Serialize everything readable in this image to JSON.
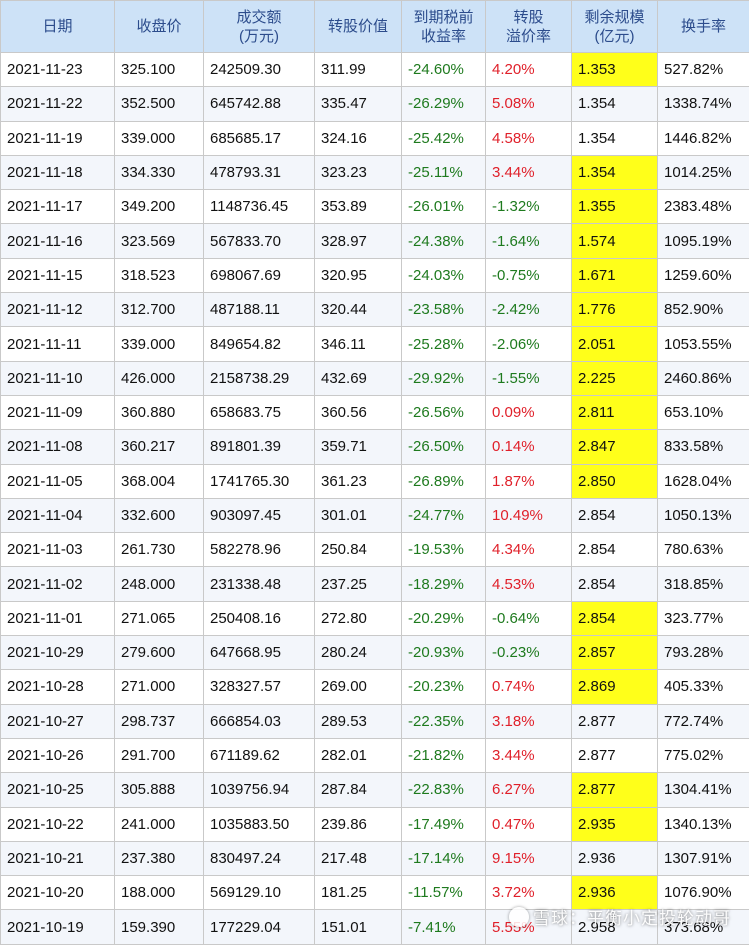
{
  "table": {
    "headers": [
      {
        "line1": "日期",
        "line2": ""
      },
      {
        "line1": "收盘价",
        "line2": ""
      },
      {
        "line1": "成交额",
        "line2": "(万元)"
      },
      {
        "line1": "转股价值",
        "line2": ""
      },
      {
        "line1": "到期税前",
        "line2": "收益率"
      },
      {
        "line1": "转股",
        "line2": "溢价率"
      },
      {
        "line1": "剩余规模",
        "line2": "(亿元)"
      },
      {
        "line1": "换手率",
        "line2": ""
      }
    ],
    "rows": [
      {
        "date": "2021-11-23",
        "close": "325.100",
        "turnover": "242509.30",
        "conv_value": "311.99",
        "ytm": "-24.60%",
        "premium": "4.20%",
        "premium_sign": "pos",
        "remain": "1.353",
        "remain_hl": true,
        "turnover_rate": "527.82%"
      },
      {
        "date": "2021-11-22",
        "close": "352.500",
        "turnover": "645742.88",
        "conv_value": "335.47",
        "ytm": "-26.29%",
        "premium": "5.08%",
        "premium_sign": "pos",
        "remain": "1.354",
        "remain_hl": false,
        "turnover_rate": "1338.74%"
      },
      {
        "date": "2021-11-19",
        "close": "339.000",
        "turnover": "685685.17",
        "conv_value": "324.16",
        "ytm": "-25.42%",
        "premium": "4.58%",
        "premium_sign": "pos",
        "remain": "1.354",
        "remain_hl": false,
        "turnover_rate": "1446.82%"
      },
      {
        "date": "2021-11-18",
        "close": "334.330",
        "turnover": "478793.31",
        "conv_value": "323.23",
        "ytm": "-25.11%",
        "premium": "3.44%",
        "premium_sign": "pos",
        "remain": "1.354",
        "remain_hl": true,
        "turnover_rate": "1014.25%"
      },
      {
        "date": "2021-11-17",
        "close": "349.200",
        "turnover": "1148736.45",
        "conv_value": "353.89",
        "ytm": "-26.01%",
        "premium": "-1.32%",
        "premium_sign": "neg",
        "remain": "1.355",
        "remain_hl": true,
        "turnover_rate": "2383.48%"
      },
      {
        "date": "2021-11-16",
        "close": "323.569",
        "turnover": "567833.70",
        "conv_value": "328.97",
        "ytm": "-24.38%",
        "premium": "-1.64%",
        "premium_sign": "neg",
        "remain": "1.574",
        "remain_hl": true,
        "turnover_rate": "1095.19%"
      },
      {
        "date": "2021-11-15",
        "close": "318.523",
        "turnover": "698067.69",
        "conv_value": "320.95",
        "ytm": "-24.03%",
        "premium": "-0.75%",
        "premium_sign": "neg",
        "remain": "1.671",
        "remain_hl": true,
        "turnover_rate": "1259.60%"
      },
      {
        "date": "2021-11-12",
        "close": "312.700",
        "turnover": "487188.11",
        "conv_value": "320.44",
        "ytm": "-23.58%",
        "premium": "-2.42%",
        "premium_sign": "neg",
        "remain": "1.776",
        "remain_hl": true,
        "turnover_rate": "852.90%"
      },
      {
        "date": "2021-11-11",
        "close": "339.000",
        "turnover": "849654.82",
        "conv_value": "346.11",
        "ytm": "-25.28%",
        "premium": "-2.06%",
        "premium_sign": "neg",
        "remain": "2.051",
        "remain_hl": true,
        "turnover_rate": "1053.55%"
      },
      {
        "date": "2021-11-10",
        "close": "426.000",
        "turnover": "2158738.29",
        "conv_value": "432.69",
        "ytm": "-29.92%",
        "premium": "-1.55%",
        "premium_sign": "neg",
        "remain": "2.225",
        "remain_hl": true,
        "turnover_rate": "2460.86%"
      },
      {
        "date": "2021-11-09",
        "close": "360.880",
        "turnover": "658683.75",
        "conv_value": "360.56",
        "ytm": "-26.56%",
        "premium": "0.09%",
        "premium_sign": "pos",
        "remain": "2.811",
        "remain_hl": true,
        "turnover_rate": "653.10%"
      },
      {
        "date": "2021-11-08",
        "close": "360.217",
        "turnover": "891801.39",
        "conv_value": "359.71",
        "ytm": "-26.50%",
        "premium": "0.14%",
        "premium_sign": "pos",
        "remain": "2.847",
        "remain_hl": true,
        "turnover_rate": "833.58%"
      },
      {
        "date": "2021-11-05",
        "close": "368.004",
        "turnover": "1741765.30",
        "conv_value": "361.23",
        "ytm": "-26.89%",
        "premium": "1.87%",
        "premium_sign": "pos",
        "remain": "2.850",
        "remain_hl": true,
        "turnover_rate": "1628.04%"
      },
      {
        "date": "2021-11-04",
        "close": "332.600",
        "turnover": "903097.45",
        "conv_value": "301.01",
        "ytm": "-24.77%",
        "premium": "10.49%",
        "premium_sign": "pos",
        "remain": "2.854",
        "remain_hl": false,
        "turnover_rate": "1050.13%"
      },
      {
        "date": "2021-11-03",
        "close": "261.730",
        "turnover": "582278.96",
        "conv_value": "250.84",
        "ytm": "-19.53%",
        "premium": "4.34%",
        "premium_sign": "pos",
        "remain": "2.854",
        "remain_hl": false,
        "turnover_rate": "780.63%"
      },
      {
        "date": "2021-11-02",
        "close": "248.000",
        "turnover": "231338.48",
        "conv_value": "237.25",
        "ytm": "-18.29%",
        "premium": "4.53%",
        "premium_sign": "pos",
        "remain": "2.854",
        "remain_hl": false,
        "turnover_rate": "318.85%"
      },
      {
        "date": "2021-11-01",
        "close": "271.065",
        "turnover": "250408.16",
        "conv_value": "272.80",
        "ytm": "-20.29%",
        "premium": "-0.64%",
        "premium_sign": "neg",
        "remain": "2.854",
        "remain_hl": true,
        "turnover_rate": "323.77%"
      },
      {
        "date": "2021-10-29",
        "close": "279.600",
        "turnover": "647668.95",
        "conv_value": "280.24",
        "ytm": "-20.93%",
        "premium": "-0.23%",
        "premium_sign": "neg",
        "remain": "2.857",
        "remain_hl": true,
        "turnover_rate": "793.28%"
      },
      {
        "date": "2021-10-28",
        "close": "271.000",
        "turnover": "328327.57",
        "conv_value": "269.00",
        "ytm": "-20.23%",
        "premium": "0.74%",
        "premium_sign": "pos",
        "remain": "2.869",
        "remain_hl": true,
        "turnover_rate": "405.33%"
      },
      {
        "date": "2021-10-27",
        "close": "298.737",
        "turnover": "666854.03",
        "conv_value": "289.53",
        "ytm": "-22.35%",
        "premium": "3.18%",
        "premium_sign": "pos",
        "remain": "2.877",
        "remain_hl": false,
        "turnover_rate": "772.74%"
      },
      {
        "date": "2021-10-26",
        "close": "291.700",
        "turnover": "671189.62",
        "conv_value": "282.01",
        "ytm": "-21.82%",
        "premium": "3.44%",
        "premium_sign": "pos",
        "remain": "2.877",
        "remain_hl": false,
        "turnover_rate": "775.02%"
      },
      {
        "date": "2021-10-25",
        "close": "305.888",
        "turnover": "1039756.94",
        "conv_value": "287.84",
        "ytm": "-22.83%",
        "premium": "6.27%",
        "premium_sign": "pos",
        "remain": "2.877",
        "remain_hl": true,
        "turnover_rate": "1304.41%"
      },
      {
        "date": "2021-10-22",
        "close": "241.000",
        "turnover": "1035883.50",
        "conv_value": "239.86",
        "ytm": "-17.49%",
        "premium": "0.47%",
        "premium_sign": "pos",
        "remain": "2.935",
        "remain_hl": true,
        "turnover_rate": "1340.13%"
      },
      {
        "date": "2021-10-21",
        "close": "237.380",
        "turnover": "830497.24",
        "conv_value": "217.48",
        "ytm": "-17.14%",
        "premium": "9.15%",
        "premium_sign": "pos",
        "remain": "2.936",
        "remain_hl": false,
        "turnover_rate": "1307.91%"
      },
      {
        "date": "2021-10-20",
        "close": "188.000",
        "turnover": "569129.10",
        "conv_value": "181.25",
        "ytm": "-11.57%",
        "premium": "3.72%",
        "premium_sign": "pos",
        "remain": "2.936",
        "remain_hl": true,
        "turnover_rate": "1076.90%"
      },
      {
        "date": "2021-10-19",
        "close": "159.390",
        "turnover": "177229.04",
        "conv_value": "151.01",
        "ytm": "-7.41%",
        "premium": "5.55%",
        "premium_sign": "pos",
        "remain": "2.958",
        "remain_hl": false,
        "turnover_rate": "373.68%"
      }
    ]
  },
  "colors": {
    "header_bg": "#cde2f7",
    "header_text": "#2c4c8c",
    "highlight": "#ffff1a",
    "positive": "#e0202a",
    "negative": "#1e7a1e"
  },
  "watermark": {
    "text": "雪球：平衡小定投轮动哥"
  }
}
